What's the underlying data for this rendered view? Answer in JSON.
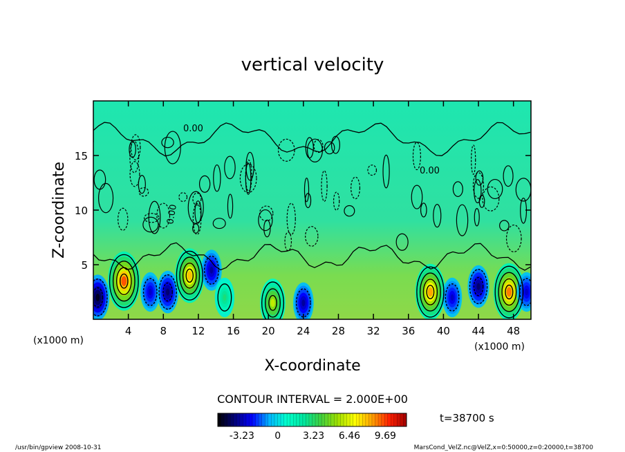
{
  "chart_data": {
    "type": "heatmap",
    "title": "vertical velocity",
    "xlabel": "X-coordinate",
    "ylabel": "Z-coordinate",
    "x_unit_left": "(x1000 m)",
    "x_unit_right": "(x1000 m)",
    "xlim": [
      0,
      50
    ],
    "ylim": [
      0,
      20
    ],
    "x_ticks": [
      4,
      8,
      12,
      16,
      20,
      24,
      28,
      32,
      36,
      40,
      44,
      48
    ],
    "y_ticks": [
      5,
      10,
      15
    ],
    "contour_labels": [
      "0.00",
      "0.00",
      "0.00"
    ],
    "contour_interval_text": "CONTOUR INTERVAL = 2.000E+00",
    "time_text": "t=38700 s",
    "colorbar": {
      "ticks": [
        -3.23,
        0,
        3.23,
        6.46,
        9.69
      ],
      "tick_labels": [
        "-3.23",
        "0",
        "3.23",
        "6.46",
        "9.69"
      ],
      "range": [
        -5.4,
        11.6
      ],
      "colors": [
        "#000000",
        "#00007a",
        "#0000ff",
        "#00b4ff",
        "#00ffcc",
        "#00e6a0",
        "#40d040",
        "#a0e000",
        "#ffff00",
        "#ffa000",
        "#ff2000",
        "#a00000"
      ]
    },
    "cells": [
      {
        "x": 0.5,
        "z": 2,
        "value": -5.0
      },
      {
        "x": 3.5,
        "z": 3.5,
        "value": 9.5
      },
      {
        "x": 6.5,
        "z": 2.5,
        "value": -3.0
      },
      {
        "x": 8.5,
        "z": 2.5,
        "value": -4.0
      },
      {
        "x": 11,
        "z": 4,
        "value": 8.0
      },
      {
        "x": 13.5,
        "z": 4.5,
        "value": -3.5
      },
      {
        "x": 15,
        "z": 2,
        "value": 3.0
      },
      {
        "x": 20.5,
        "z": 1.5,
        "value": 6.0
      },
      {
        "x": 24,
        "z": 1.5,
        "value": -3.5
      },
      {
        "x": 38.5,
        "z": 2.5,
        "value": 8.5
      },
      {
        "x": 41,
        "z": 2,
        "value": -3.0
      },
      {
        "x": 44,
        "z": 3,
        "value": -4.0
      },
      {
        "x": 47.5,
        "z": 2.5,
        "value": 9.0
      },
      {
        "x": 49.5,
        "z": 2.5,
        "value": -3.0
      }
    ]
  },
  "footer": {
    "left": "/usr/bin/gpview   2008-10-31",
    "right": "MarsCond_VelZ.nc@VelZ,x=0:50000,z=0:20000,t=38700"
  }
}
